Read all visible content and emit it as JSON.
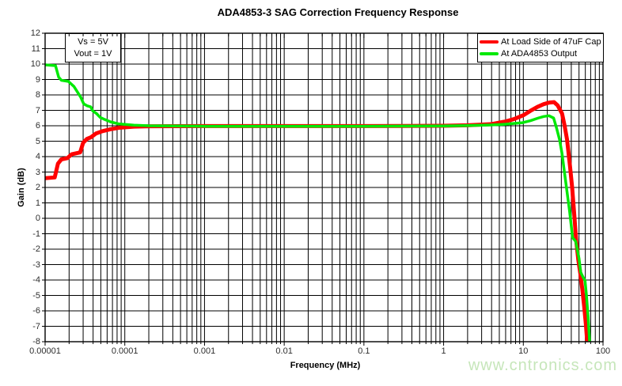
{
  "page": {
    "watermark": "www.cntronics.com",
    "watermark_color": "#c6e6ba"
  },
  "chart_data": {
    "type": "line",
    "title": "ADA4853-3 SAG Correction Frequency Response",
    "xlabel": "Frequency (MHz)",
    "ylabel": "Gain (dB)",
    "x_scale": "log",
    "xlim": [
      1e-05,
      100
    ],
    "ylim": [
      -8,
      12
    ],
    "x_ticks": [
      "0.00001",
      "0.0001",
      "0.001",
      "0.01",
      "0.1",
      "1",
      "10",
      "100"
    ],
    "y_ticks": [
      12,
      11,
      10,
      9,
      8,
      7,
      6,
      5,
      4,
      3,
      2,
      1,
      0,
      -1,
      -2,
      -3,
      -4,
      -5,
      -6,
      -7,
      -8
    ],
    "grid": "minor log gridlines on x every decade step, 1 dB gridlines on y, all black on white",
    "legend_position": "top-right",
    "grid_color": "#000000",
    "annotation": {
      "lines": [
        "Vs = 5V",
        "Vout = 1V"
      ]
    },
    "series": [
      {
        "name": "At Load Side of 47uF Cap",
        "color": "#ff0000",
        "width": 5,
        "points": [
          [
            1e-05,
            2.6
          ],
          [
            1.32e-05,
            2.65
          ],
          [
            1.45e-05,
            3.55
          ],
          [
            1.6e-05,
            3.82
          ],
          [
            1.9e-05,
            3.9
          ],
          [
            2.15e-05,
            4.15
          ],
          [
            2.75e-05,
            4.27
          ],
          [
            3e-05,
            4.9
          ],
          [
            3.35e-05,
            5.15
          ],
          [
            3.75e-05,
            5.25
          ],
          [
            4.35e-05,
            5.5
          ],
          [
            5.25e-05,
            5.65
          ],
          [
            6.65e-05,
            5.78
          ],
          [
            8.45e-05,
            5.87
          ],
          [
            0.00013,
            5.94
          ],
          [
            0.0002,
            5.97
          ],
          [
            0.001,
            5.98
          ],
          [
            0.01,
            5.98
          ],
          [
            0.1,
            5.98
          ],
          [
            1,
            6.0
          ],
          [
            2,
            6.03
          ],
          [
            3.9,
            6.1
          ],
          [
            6,
            6.28
          ],
          [
            7.8,
            6.45
          ],
          [
            10,
            6.68
          ],
          [
            12.3,
            6.97
          ],
          [
            15,
            7.22
          ],
          [
            18,
            7.4
          ],
          [
            21,
            7.5
          ],
          [
            24.3,
            7.53
          ],
          [
            27,
            7.32
          ],
          [
            30.6,
            6.8
          ],
          [
            33,
            6.0
          ],
          [
            35.4,
            5.1
          ],
          [
            38.5,
            3.4
          ],
          [
            41,
            2.0
          ],
          [
            43.5,
            0.3
          ],
          [
            46,
            -1.4
          ],
          [
            49,
            -2.7
          ],
          [
            52,
            -3.6
          ],
          [
            55,
            -4.6
          ],
          [
            58,
            -5.7
          ],
          [
            61,
            -6.9
          ],
          [
            64,
            -8.3
          ]
        ]
      },
      {
        "name": "At ADA4853 Output",
        "color": "#00e907",
        "width": 3.5,
        "points": [
          [
            1e-05,
            9.95
          ],
          [
            1.35e-05,
            9.9
          ],
          [
            1.48e-05,
            9.15
          ],
          [
            1.6e-05,
            8.95
          ],
          [
            1.95e-05,
            8.88
          ],
          [
            2.3e-05,
            8.55
          ],
          [
            2.8e-05,
            7.85
          ],
          [
            3.05e-05,
            7.42
          ],
          [
            3.35e-05,
            7.3
          ],
          [
            3.75e-05,
            7.22
          ],
          [
            3.95e-05,
            6.97
          ],
          [
            4.4e-05,
            6.8
          ],
          [
            4.9e-05,
            6.55
          ],
          [
            5.35e-05,
            6.45
          ],
          [
            6.65e-05,
            6.25
          ],
          [
            8.45e-05,
            6.12
          ],
          [
            0.00013,
            6.04
          ],
          [
            0.0002,
            6.0
          ],
          [
            0.001,
            5.97
          ],
          [
            0.01,
            5.97
          ],
          [
            0.1,
            5.97
          ],
          [
            1,
            5.99
          ],
          [
            2,
            6.01
          ],
          [
            3.9,
            6.05
          ],
          [
            6,
            6.1
          ],
          [
            9.8,
            6.2
          ],
          [
            12.3,
            6.33
          ],
          [
            15.4,
            6.5
          ],
          [
            18,
            6.6
          ],
          [
            21,
            6.65
          ],
          [
            24,
            6.5
          ],
          [
            26.3,
            5.8
          ],
          [
            28.5,
            5.1
          ],
          [
            30.6,
            4.2
          ],
          [
            33,
            2.9
          ],
          [
            35.4,
            1.7
          ],
          [
            38,
            0.5
          ],
          [
            40,
            -0.5
          ],
          [
            41.5,
            -1.25
          ],
          [
            45.5,
            -1.5
          ],
          [
            50,
            -2.6
          ],
          [
            52.5,
            -3.5
          ],
          [
            56,
            -3.8
          ],
          [
            59.5,
            -4.05
          ],
          [
            62,
            -5.0
          ],
          [
            65,
            -6.4
          ],
          [
            68.5,
            -8.3
          ]
        ]
      }
    ]
  }
}
